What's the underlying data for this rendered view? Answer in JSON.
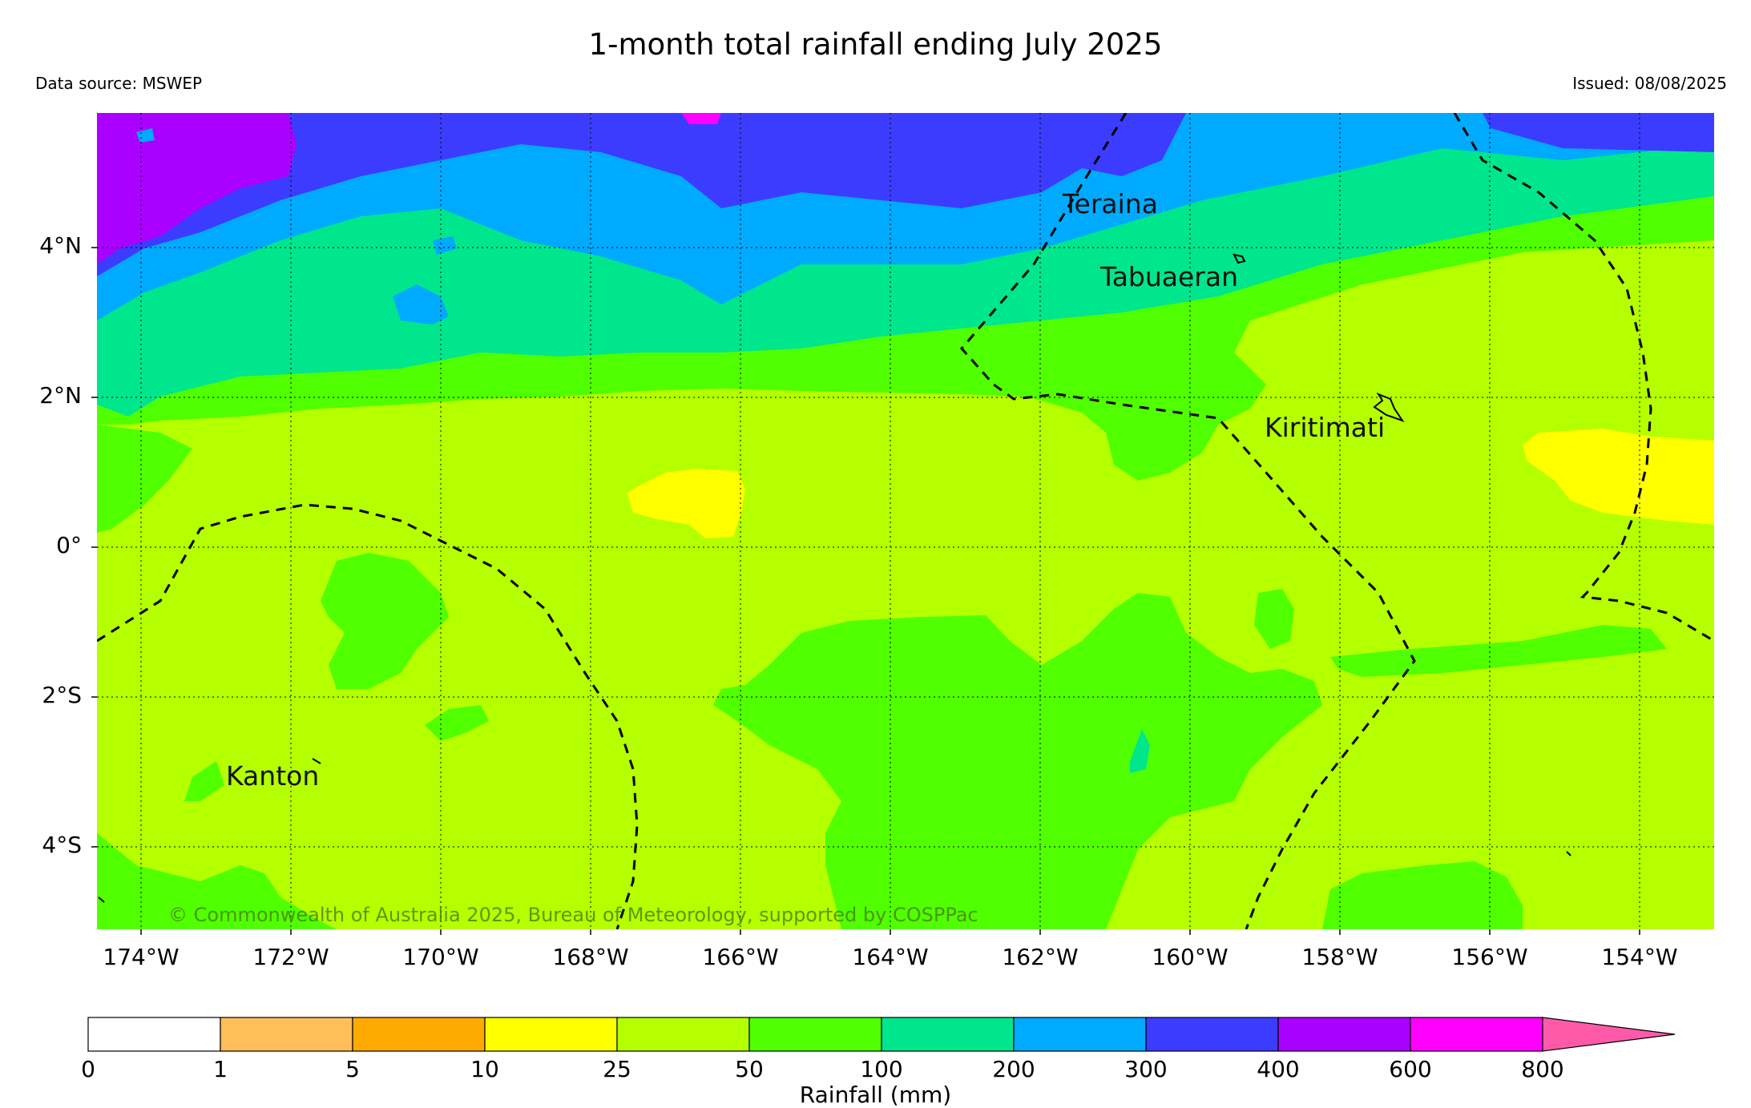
{
  "title": "1-month total rainfall ending July 2025",
  "data_source": "Data source: MSWEP",
  "issued": "Issued: 08/08/2025",
  "copyright": "© Commonwealth of Australia 2025, Bureau of Meteorology, supported by COSPPac",
  "lat_labels": [
    "4°N",
    "2°N",
    "0°",
    "2°S",
    "4°S"
  ],
  "lon_labels": [
    "174°W",
    "172°W",
    "170°W",
    "168°W",
    "166°W",
    "164°W",
    "162°W",
    "160°W",
    "158°W",
    "156°W",
    "154°W"
  ],
  "places": {
    "teraina": "Teraina",
    "tabuaeran": "Tabuaeran",
    "kiritimati": "Kiritimati",
    "kanton": "Kanton"
  },
  "colorbar": {
    "label": "Rainfall (mm)",
    "ticks": [
      "0",
      "1",
      "5",
      "10",
      "25",
      "50",
      "100",
      "200",
      "300",
      "400",
      "600",
      "800"
    ],
    "colors": [
      "#ffffff",
      "#ffbe5a",
      "#ffaa00",
      "#ffff00",
      "#b4ff00",
      "#50ff00",
      "#00e68c",
      "#00aaff",
      "#3c3cff",
      "#aa00ff",
      "#ff00ff",
      "#ff5aaa"
    ]
  }
}
